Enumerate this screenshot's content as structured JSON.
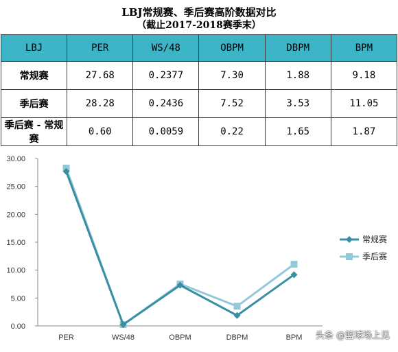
{
  "title": {
    "line1": "LBJ常规赛、季后赛高阶数据对比",
    "line2": "（截止2017-2018赛季末）"
  },
  "table": {
    "header": [
      "LBJ",
      "PER",
      "WS/48",
      "OBPM",
      "DBPM",
      "BPM"
    ],
    "rows": [
      {
        "label": "常规赛",
        "values": [
          "27.68",
          "0.2377",
          "7.30",
          "1.88",
          "9.18"
        ]
      },
      {
        "label": "季后赛",
        "values": [
          "28.28",
          "0.2436",
          "7.52",
          "3.53",
          "11.05"
        ]
      },
      {
        "label": "季后赛 - 常规赛",
        "values": [
          "0.60",
          "0.0059",
          "0.22",
          "1.65",
          "1.87"
        ]
      }
    ],
    "header_color": "#3cb5c7"
  },
  "chart_data": {
    "type": "line",
    "categories": [
      "PER",
      "WS/48",
      "OBPM",
      "DBPM",
      "BPM"
    ],
    "series": [
      {
        "name": "常规赛",
        "values": [
          27.68,
          0.2377,
          7.3,
          1.88,
          9.18
        ],
        "color": "#3a8ea3",
        "marker": "diamond"
      },
      {
        "name": "季后赛",
        "values": [
          28.28,
          0.2436,
          7.52,
          3.53,
          11.05
        ],
        "color": "#94c9d9",
        "marker": "square"
      }
    ],
    "y_ticks": [
      "30.00",
      "25.00",
      "20.00",
      "15.00",
      "10.00",
      "5.00",
      "0.00"
    ],
    "ylim": [
      0,
      30
    ],
    "grid": false,
    "legend": "right"
  },
  "watermark": "头条 @篮球场上见"
}
